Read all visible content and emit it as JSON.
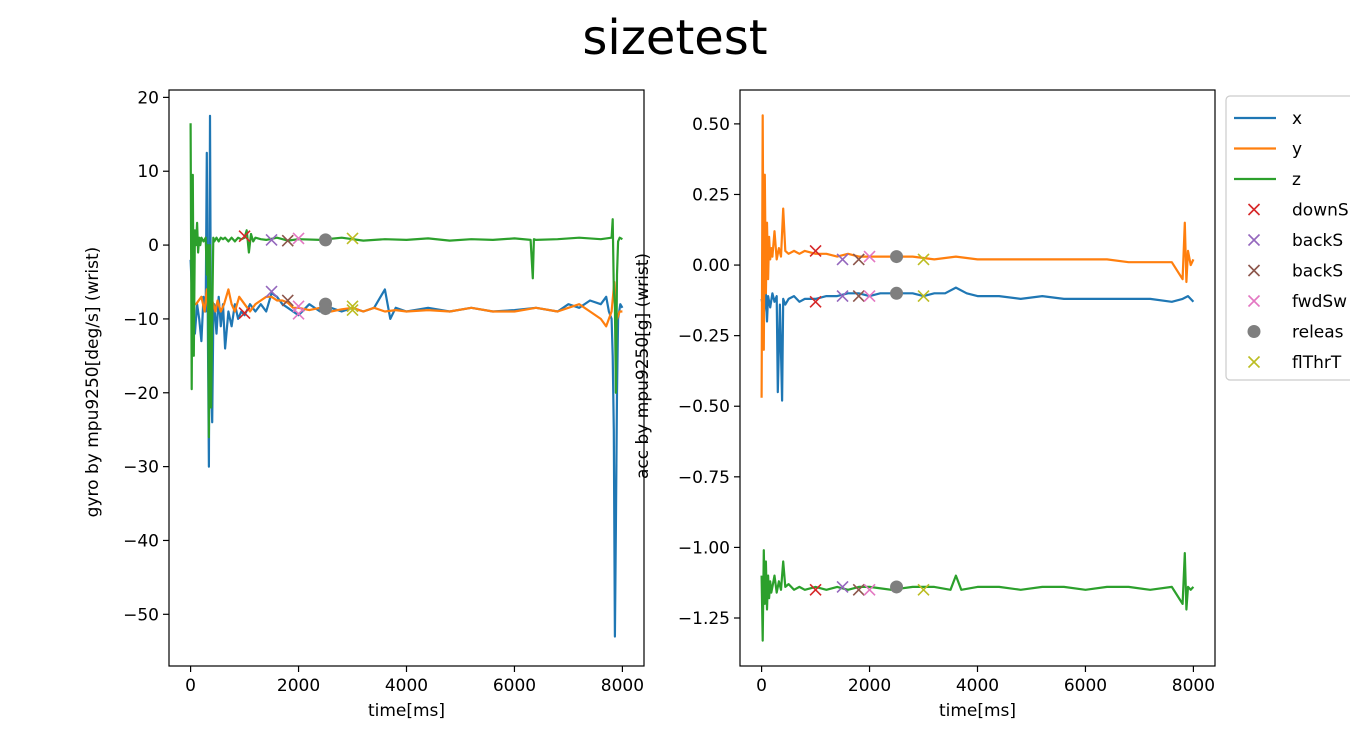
{
  "figure": {
    "title": "sizetest"
  },
  "colors": {
    "x": "#1f77b4",
    "y": "#ff7f0e",
    "z": "#2ca02c",
    "downSwing": "#d62728",
    "backSwing1": "#9467bd",
    "backSwing2": "#8c564b",
    "fwdSwing": "#e377c2",
    "release": "#7f7f7f",
    "flThr": "#bcbd22"
  },
  "legend": {
    "placement": "right, outside upper-right of second plot, clipped at image edge",
    "entries": [
      {
        "label": "x",
        "marker": "line",
        "color": "#1f77b4"
      },
      {
        "label": "y",
        "marker": "line",
        "color": "#ff7f0e"
      },
      {
        "label": "z",
        "marker": "line",
        "color": "#2ca02c"
      },
      {
        "label": "downS",
        "marker": "x",
        "color": "#d62728"
      },
      {
        "label": "backS",
        "marker": "x",
        "color": "#9467bd"
      },
      {
        "label": "backS",
        "marker": "x",
        "color": "#8c564b"
      },
      {
        "label": "fwdSw",
        "marker": "x",
        "color": "#e377c2"
      },
      {
        "label": "releas",
        "marker": "o",
        "color": "#7f7f7f"
      },
      {
        "label": "flThrT",
        "marker": "x",
        "color": "#bcbd22"
      }
    ]
  },
  "chart_data": [
    {
      "type": "line",
      "xlabel": "time[ms]",
      "ylabel": "gyro by mpu9250[deg/s] (wrist)",
      "xlim": [
        -400,
        8400
      ],
      "ylim": [
        -57,
        21
      ],
      "xticks": [
        0,
        2000,
        4000,
        6000,
        8000
      ],
      "xtick_labels": [
        "0",
        "2000",
        "4000",
        "6000",
        "8000"
      ],
      "yticks": [
        20,
        10,
        0,
        -10,
        -20,
        -30,
        -40,
        -50
      ],
      "ytick_labels": [
        "20",
        "10",
        "0",
        "−10",
        "−20",
        "−30",
        "−40",
        "−50"
      ],
      "grid": false,
      "series": [
        {
          "name": "x",
          "color": "#1f77b4",
          "x": [
            0,
            40,
            80,
            120,
            160,
            200,
            240,
            280,
            300,
            320,
            340,
            360,
            380,
            400,
            420,
            440,
            480,
            520,
            560,
            600,
            640,
            700,
            760,
            820,
            880,
            940,
            1000,
            1100,
            1200,
            1300,
            1400,
            1500,
            1600,
            1700,
            1800,
            1900,
            2000,
            2200,
            2400,
            2600,
            2800,
            3000,
            3200,
            3400,
            3600,
            3700,
            3800,
            4000,
            4400,
            4800,
            5200,
            5600,
            6000,
            6400,
            6800,
            7000,
            7200,
            7400,
            7600,
            7700,
            7750,
            7800,
            7820,
            7840,
            7860,
            7880,
            7900,
            7920,
            7940,
            7960,
            8000
          ],
          "y": [
            -2,
            -9,
            -12,
            -8,
            -10,
            -13,
            -7,
            -9,
            12.5,
            -12,
            -30,
            17.5,
            -18,
            -24,
            -10,
            -8,
            -12,
            -7,
            -11,
            -8,
            -14,
            -9,
            -11,
            -8,
            -10,
            -9,
            -9.5,
            -8,
            -9,
            -8,
            -9,
            -6.5,
            -7,
            -8,
            -8.5,
            -9,
            -9.5,
            -8,
            -9,
            -8.5,
            -9,
            -8.5,
            -9,
            -8.5,
            -6,
            -10,
            -8.5,
            -9,
            -8.5,
            -9,
            -8.5,
            -9,
            -8.8,
            -8.5,
            -9,
            -8,
            -8.5,
            -7.5,
            -8,
            -7,
            -9,
            -10,
            -15,
            -25,
            -53,
            -38,
            -20,
            -10,
            -9,
            -8,
            -8.5
          ]
        },
        {
          "name": "y",
          "color": "#ff7f0e",
          "x": [
            0,
            100,
            200,
            260,
            300,
            340,
            380,
            420,
            460,
            500,
            560,
            620,
            700,
            760,
            820,
            900,
            1000,
            1100,
            1200,
            1300,
            1400,
            1500,
            1600,
            1700,
            1800,
            1900,
            2000,
            2200,
            2400,
            2600,
            2800,
            3000,
            3200,
            3400,
            3600,
            3800,
            4000,
            4400,
            4800,
            5200,
            5600,
            6000,
            6400,
            6800,
            7000,
            7200,
            7400,
            7600,
            7700,
            7800,
            7850,
            7900,
            7950,
            8000
          ],
          "y": [
            -8,
            -8,
            -7,
            -9,
            -6,
            -10,
            -7,
            -8,
            -9,
            -7.5,
            -9,
            -8,
            -6,
            -8,
            -9,
            -7,
            -8,
            -9,
            -8,
            -7.5,
            -7,
            -7,
            -7.5,
            -7.5,
            -7.8,
            -8.5,
            -8.5,
            -8.8,
            -8.5,
            -9,
            -8.7,
            -8.5,
            -9,
            -8.5,
            -9,
            -8.8,
            -9,
            -8.8,
            -9,
            -8.5,
            -9,
            -9,
            -8.5,
            -9,
            -8.5,
            -8,
            -9,
            -10,
            -11,
            -9,
            -5,
            -10,
            -9,
            -9
          ]
        },
        {
          "name": "z",
          "color": "#2ca02c",
          "x": [
            0,
            20,
            40,
            60,
            80,
            100,
            120,
            140,
            160,
            180,
            200,
            240,
            280,
            300,
            320,
            340,
            360,
            380,
            400,
            420,
            440,
            480,
            520,
            560,
            600,
            640,
            700,
            760,
            820,
            880,
            940,
            1000,
            1040,
            1080,
            1120,
            1160,
            1200,
            1300,
            1400,
            1600,
            1800,
            2000,
            2400,
            2800,
            3200,
            3600,
            4000,
            4400,
            4800,
            5200,
            5600,
            6000,
            6300,
            6340,
            6360,
            6400,
            6800,
            7200,
            7600,
            7800,
            7820,
            7840,
            7860,
            7880,
            7900,
            7920,
            7950,
            8000
          ],
          "y": [
            16.5,
            -19.5,
            9.5,
            -15,
            2,
            0,
            3,
            -1,
            1,
            0,
            1,
            0.5,
            1,
            -4,
            0,
            -26,
            0,
            -22,
            -10,
            1,
            0.5,
            1,
            0.5,
            1,
            0.8,
            1,
            0.5,
            1,
            0.5,
            1,
            0.8,
            1,
            2,
            -1,
            1.5,
            0.5,
            1,
            0.8,
            0.7,
            1,
            0.6,
            0.8,
            0.7,
            1,
            0.6,
            0.8,
            0.7,
            0.9,
            0.6,
            0.8,
            0.7,
            0.9,
            0.7,
            -4.5,
            0.8,
            0.7,
            0.8,
            1,
            0.8,
            1,
            3.5,
            -6,
            -8,
            -20,
            -4,
            0.5,
            1,
            0.8
          ]
        }
      ],
      "events": [
        {
          "legend": "downS",
          "color": "#d62728",
          "marker": "x",
          "x": 1000,
          "y": [
            1.2,
            -9.2
          ]
        },
        {
          "legend": "backS",
          "color": "#9467bd",
          "marker": "x",
          "x": 1500,
          "y": [
            0.7,
            -6.3
          ]
        },
        {
          "legend": "backS",
          "color": "#8c564b",
          "marker": "x",
          "x": 1800,
          "y": [
            0.6,
            -7.5
          ]
        },
        {
          "legend": "fwdSw",
          "color": "#e377c2",
          "marker": "x",
          "x": 2000,
          "y": [
            0.9,
            -8.3,
            -9.3
          ]
        },
        {
          "legend": "releas",
          "color": "#7f7f7f",
          "marker": "o",
          "x": 2500,
          "y": [
            0.7,
            -8.0,
            -8.6
          ]
        },
        {
          "legend": "flThrT",
          "color": "#bcbd22",
          "marker": "x",
          "x": 3000,
          "y": [
            0.9,
            -8.3,
            -8.8
          ]
        }
      ]
    },
    {
      "type": "line",
      "xlabel": "time[ms]",
      "ylabel": "acc by mpu9250[g] (wrist)",
      "xlim": [
        -400,
        8400
      ],
      "ylim": [
        -1.42,
        0.62
      ],
      "xticks": [
        0,
        2000,
        4000,
        6000,
        8000
      ],
      "xtick_labels": [
        "0",
        "2000",
        "4000",
        "6000",
        "8000"
      ],
      "yticks": [
        0.5,
        0.25,
        0.0,
        -0.25,
        -0.5,
        -0.75,
        -1.0,
        -1.25
      ],
      "ytick_labels": [
        "0.50",
        "0.25",
        "0.00",
        "−0.25",
        "−0.50",
        "−0.75",
        "−1.00",
        "−1.25"
      ],
      "grid": false,
      "series": [
        {
          "name": "x",
          "color": "#1f77b4",
          "x": [
            0,
            40,
            80,
            100,
            120,
            160,
            200,
            240,
            280,
            300,
            340,
            380,
            400,
            440,
            500,
            600,
            700,
            800,
            900,
            1000,
            1200,
            1400,
            1600,
            1800,
            2000,
            2200,
            2400,
            2600,
            2800,
            3000,
            3200,
            3400,
            3600,
            3800,
            4000,
            4400,
            4800,
            5200,
            5600,
            6000,
            6400,
            6800,
            7200,
            7600,
            7800,
            7900,
            8000
          ],
          "y": [
            -0.12,
            -0.17,
            -0.1,
            -0.2,
            -0.11,
            -0.15,
            -0.1,
            -0.13,
            -0.11,
            -0.45,
            -0.14,
            -0.48,
            -0.12,
            -0.14,
            -0.12,
            -0.11,
            -0.13,
            -0.12,
            -0.12,
            -0.12,
            -0.11,
            -0.11,
            -0.1,
            -0.1,
            -0.11,
            -0.1,
            -0.1,
            -0.1,
            -0.1,
            -0.11,
            -0.1,
            -0.1,
            -0.08,
            -0.1,
            -0.11,
            -0.11,
            -0.12,
            -0.11,
            -0.12,
            -0.12,
            -0.12,
            -0.12,
            -0.12,
            -0.13,
            -0.12,
            -0.11,
            -0.13
          ]
        },
        {
          "name": "y",
          "color": "#ff7f0e",
          "x": [
            0,
            20,
            40,
            60,
            80,
            100,
            120,
            140,
            160,
            180,
            200,
            240,
            280,
            320,
            360,
            400,
            440,
            500,
            600,
            700,
            800,
            1000,
            1200,
            1400,
            1600,
            1800,
            2000,
            2400,
            2800,
            3200,
            3600,
            4000,
            4400,
            4800,
            5200,
            5600,
            6000,
            6400,
            6800,
            7200,
            7600,
            7800,
            7840,
            7870,
            7900,
            7950,
            8000
          ],
          "y": [
            -0.47,
            0.53,
            -0.3,
            0.32,
            -0.1,
            0.15,
            -0.05,
            0.1,
            0.02,
            0.06,
            0.03,
            0.12,
            0.02,
            0.06,
            0.03,
            0.2,
            0.05,
            0.04,
            0.05,
            0.04,
            0.05,
            0.04,
            0.04,
            0.03,
            0.04,
            0.03,
            0.03,
            0.03,
            0.03,
            0.02,
            0.03,
            0.02,
            0.02,
            0.02,
            0.02,
            0.02,
            0.02,
            0.02,
            0.01,
            0.01,
            0.01,
            -0.05,
            0.15,
            -0.06,
            0.05,
            0.0,
            0.02
          ]
        },
        {
          "name": "z",
          "color": "#2ca02c",
          "x": [
            0,
            20,
            40,
            60,
            80,
            100,
            120,
            140,
            160,
            180,
            200,
            240,
            280,
            320,
            360,
            400,
            440,
            500,
            600,
            700,
            800,
            1000,
            1200,
            1400,
            1600,
            1800,
            2000,
            2400,
            2800,
            3200,
            3500,
            3600,
            3700,
            4000,
            4400,
            4800,
            5200,
            5600,
            6000,
            6400,
            6800,
            7200,
            7600,
            7800,
            7840,
            7870,
            7900,
            7950,
            8000
          ],
          "y": [
            -1.1,
            -1.33,
            -1.01,
            -1.2,
            -1.05,
            -1.22,
            -1.1,
            -1.18,
            -1.12,
            -1.16,
            -1.14,
            -1.1,
            -1.16,
            -1.12,
            -1.15,
            -1.05,
            -1.14,
            -1.13,
            -1.15,
            -1.14,
            -1.15,
            -1.14,
            -1.15,
            -1.14,
            -1.15,
            -1.14,
            -1.14,
            -1.15,
            -1.14,
            -1.14,
            -1.15,
            -1.1,
            -1.15,
            -1.14,
            -1.14,
            -1.15,
            -1.14,
            -1.14,
            -1.15,
            -1.14,
            -1.14,
            -1.15,
            -1.14,
            -1.2,
            -1.02,
            -1.22,
            -1.14,
            -1.15,
            -1.14
          ]
        }
      ],
      "events": [
        {
          "legend": "downS",
          "color": "#d62728",
          "marker": "x",
          "x": 1000,
          "y": [
            0.05,
            -0.13,
            -1.15
          ]
        },
        {
          "legend": "backS",
          "color": "#9467bd",
          "marker": "x",
          "x": 1500,
          "y": [
            0.02,
            -0.11,
            -1.14
          ]
        },
        {
          "legend": "backS",
          "color": "#8c564b",
          "marker": "x",
          "x": 1800,
          "y": [
            0.02,
            -0.11,
            -1.15
          ]
        },
        {
          "legend": "fwdSw",
          "color": "#e377c2",
          "marker": "x",
          "x": 2000,
          "y": [
            0.03,
            -0.11,
            -1.15
          ]
        },
        {
          "legend": "releas",
          "color": "#7f7f7f",
          "marker": "o",
          "x": 2500,
          "y": [
            0.03,
            -0.1,
            -1.14
          ]
        },
        {
          "legend": "flThrT",
          "color": "#bcbd22",
          "marker": "x",
          "x": 3000,
          "y": [
            0.02,
            -0.11,
            -1.15
          ]
        }
      ]
    }
  ]
}
